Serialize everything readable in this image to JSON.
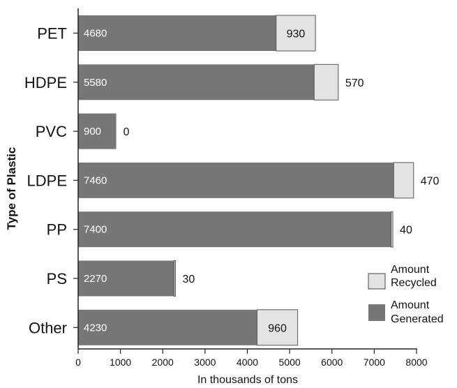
{
  "chart_data": {
    "type": "bar",
    "orientation": "horizontal",
    "stacked": true,
    "categories": [
      "PET",
      "HDPE",
      "PVC",
      "LDPE",
      "PP",
      "PS",
      "Other"
    ],
    "series": [
      {
        "name": "Amount Generated",
        "values": [
          4680,
          5580,
          900,
          7460,
          7400,
          2270,
          4230
        ],
        "color": "#767676"
      },
      {
        "name": "Amount Recycled",
        "values": [
          930,
          570,
          0,
          470,
          40,
          30,
          960
        ],
        "color": "#e3e3e3"
      }
    ],
    "xlabel": "In thousands of tons",
    "ylabel": "Type of Plastic",
    "xlim": [
      0,
      8000
    ],
    "xticks": [
      "0",
      "1000",
      "2000",
      "3000",
      "4000",
      "5000",
      "6000",
      "7000",
      "8000"
    ],
    "grid": false,
    "legend_position": "bottom-right",
    "legend": {
      "recycled": [
        "Amount",
        "Recycled"
      ],
      "generated": [
        "Amount",
        "Generated"
      ]
    }
  }
}
